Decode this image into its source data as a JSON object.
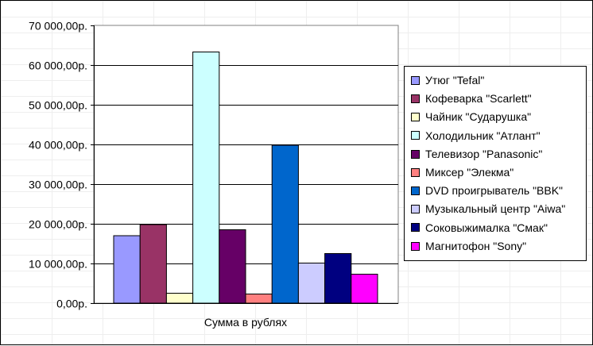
{
  "chart_data": {
    "type": "bar",
    "title": "",
    "xlabel": "Сумма в рублях",
    "ylabel": "",
    "ylim": [
      0,
      70000
    ],
    "ytick_values": [
      0,
      10000,
      20000,
      30000,
      40000,
      50000,
      60000,
      70000
    ],
    "ytick_labels": [
      "0,00р.",
      "10 000,00р.",
      "20 000,00р.",
      "30 000,00р.",
      "40 000,00р.",
      "50 000,00р.",
      "60 000,00р.",
      "70 000,00р."
    ],
    "grid": true,
    "legend_position": "right",
    "series": [
      {
        "name": "Утюг \"Tefal\"",
        "values": [
          17000
        ],
        "color": "#9999ff"
      },
      {
        "name": "Кофеварка \"Scarlett\"",
        "values": [
          19800
        ],
        "color": "#993366"
      },
      {
        "name": "Чайник \"Сударушка\"",
        "values": [
          2500
        ],
        "color": "#ffffcc"
      },
      {
        "name": "Холодильник \"Атлант\"",
        "values": [
          63300
        ],
        "color": "#ccffff"
      },
      {
        "name": "Телевизор \"Panasonic\"",
        "values": [
          18500
        ],
        "color": "#660066"
      },
      {
        "name": "Миксер \"Элекма\"",
        "values": [
          2300
        ],
        "color": "#ff8080"
      },
      {
        "name": "DVD проигрыватель \"BBK\"",
        "values": [
          39800
        ],
        "color": "#0066cc"
      },
      {
        "name": "Музыкальный центр \"Aiwa\"",
        "values": [
          10100
        ],
        "color": "#ccccff"
      },
      {
        "name": "Соковыжималка \"Смак\"",
        "values": [
          12500
        ],
        "color": "#000080"
      },
      {
        "name": "Магнитофон \"Sony\"",
        "values": [
          7300
        ],
        "color": "#ff00ff"
      }
    ]
  }
}
